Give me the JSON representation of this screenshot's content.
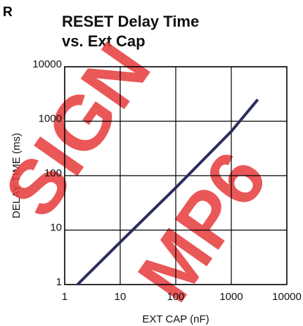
{
  "chart_data": {
    "type": "line",
    "page_fragment": "R",
    "title": [
      "RESET Delay Time",
      "vs. Ext Cap"
    ],
    "x_label": "EXT CAP (nF)",
    "y_label": "DELAY TIME (ms)",
    "watermark": [
      "SIGN",
      "MP6"
    ],
    "x": [
      1.7,
      10,
      100,
      1000,
      3000
    ],
    "series": [
      {
        "name": null,
        "color": "#2b2d5e",
        "values": [
          1,
          6,
          60,
          650,
          2500
        ]
      }
    ],
    "xlim": [
      1,
      10000
    ],
    "ylim": [
      1,
      10000
    ],
    "xticks": [
      1,
      10,
      100,
      1000,
      10000
    ],
    "yticks": [
      1,
      10,
      100,
      1000,
      10000
    ],
    "log_x": true,
    "log_y": true,
    "grid": true
  }
}
